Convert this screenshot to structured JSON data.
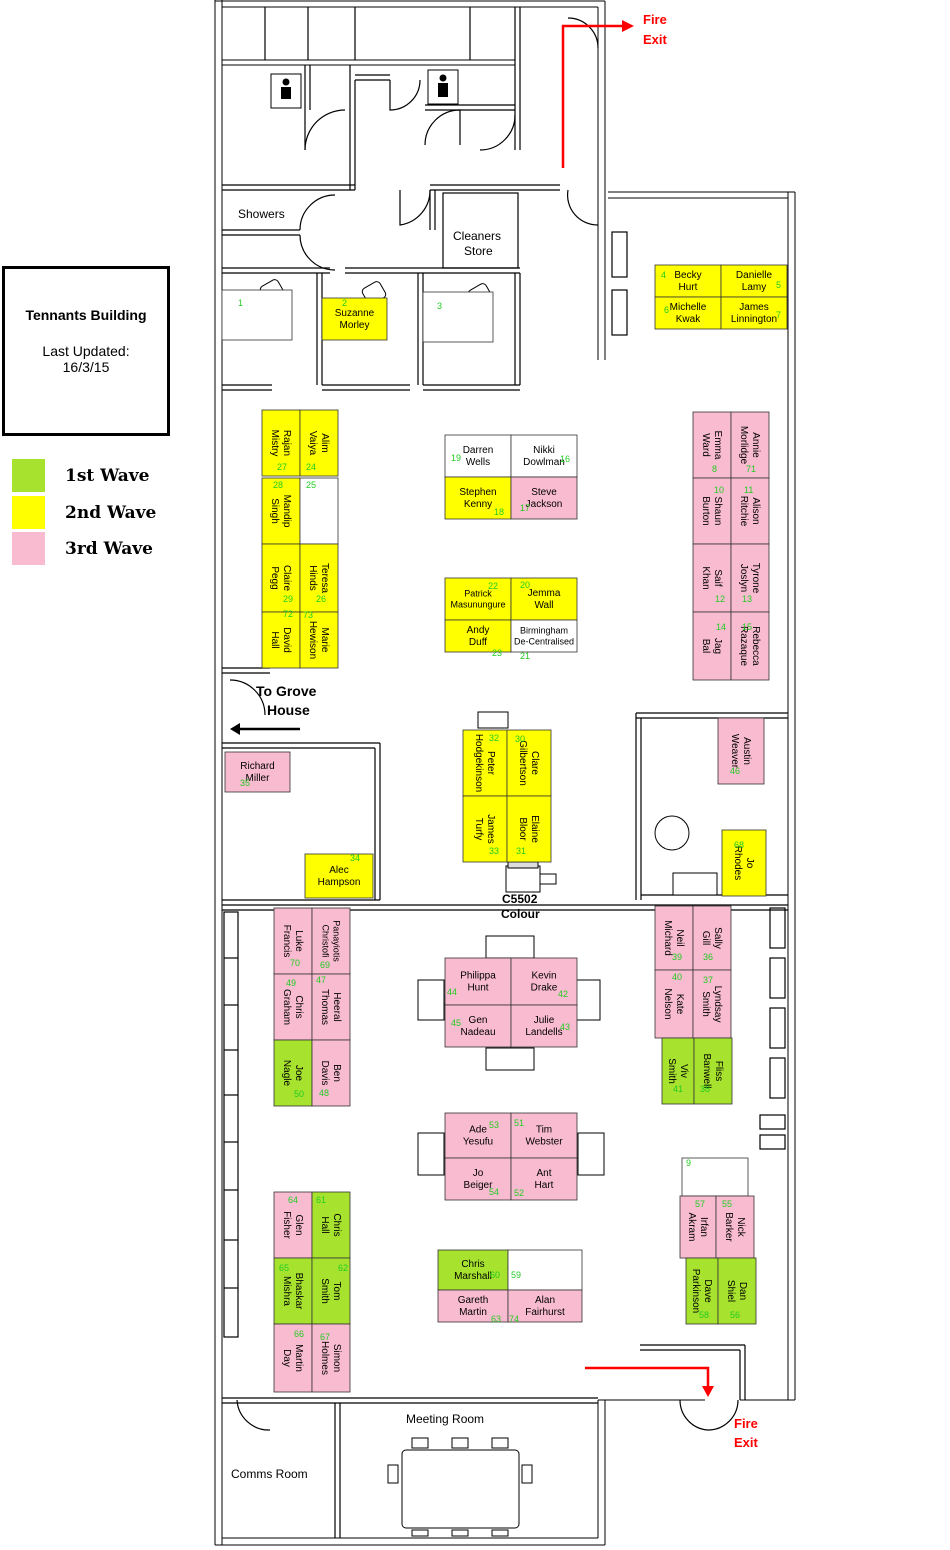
{
  "title_box": {
    "title": "Tennants Building",
    "updated_label": "Last Updated:",
    "updated_date": "16/3/15"
  },
  "legend": [
    {
      "label": "1st Wave",
      "color": "#a6e22e"
    },
    {
      "label": "2nd Wave",
      "color": "#ffff00"
    },
    {
      "label": "3rd Wave",
      "color": "#f8bbd0"
    }
  ],
  "colors": {
    "wave1": "#a6e22e",
    "wave2": "#ffff00",
    "wave3": "#f8bbd0",
    "empty": "#ffffff",
    "exit": "#ff0000",
    "num": "#22cc22"
  },
  "rooms": {
    "showers": "Showers",
    "cleaners_1": "Cleaners",
    "cleaners_2": "Store",
    "meeting": "Meeting  Room",
    "comms": "Comms Room",
    "printer_1": "C5502",
    "printer_2": "Colour",
    "grove_1": "To Grove",
    "grove_2": "House",
    "fire_exit_1": "Fire",
    "fire_exit_2": "Exit"
  },
  "desks": [
    {
      "num": "1",
      "name": "",
      "wave": "empty"
    },
    {
      "num": "2",
      "name": "Suzanne Morley",
      "wave": "wave2"
    },
    {
      "num": "3",
      "name": "",
      "wave": "empty"
    },
    {
      "num": "4",
      "name": "Becky Hurt",
      "wave": "wave2"
    },
    {
      "num": "5",
      "name": "Danielle Lamy",
      "wave": "wave2"
    },
    {
      "num": "6",
      "name": "Michelle Kwak",
      "wave": "wave2"
    },
    {
      "num": "7",
      "name": "James Linnington",
      "wave": "wave2"
    },
    {
      "num": "8",
      "name": "Emma Ward",
      "wave": "wave3"
    },
    {
      "num": "71",
      "name": "Annie Morlidge",
      "wave": "wave3"
    },
    {
      "num": "10",
      "name": "Shaun Burton",
      "wave": "wave3"
    },
    {
      "num": "11",
      "name": "Alison Ritchie",
      "wave": "wave3"
    },
    {
      "num": "12",
      "name": "Saif Khan",
      "wave": "wave3"
    },
    {
      "num": "13",
      "name": "Tyrone Joslyn",
      "wave": "wave3"
    },
    {
      "num": "14",
      "name": "Jag Bal",
      "wave": "wave3"
    },
    {
      "num": "15",
      "name": "Rebecca Razaque",
      "wave": "wave3"
    },
    {
      "num": "19",
      "name": "Darren Wells",
      "wave": "empty"
    },
    {
      "num": "16",
      "name": "Nikki Dowlman",
      "wave": "empty"
    },
    {
      "num": "18",
      "name": "Stephen Kenny",
      "wave": "wave2"
    },
    {
      "num": "17",
      "name": "Steve Jackson",
      "wave": "wave3"
    },
    {
      "num": "22",
      "name": "Patrick Masunungure",
      "wave": "wave2"
    },
    {
      "num": "20",
      "name": "Jemma Wall",
      "wave": "wave2"
    },
    {
      "num": "23",
      "name": "Andy Duff",
      "wave": "wave2"
    },
    {
      "num": "21",
      "name": "Birmingham De-Centralised",
      "wave": "empty"
    },
    {
      "num": "27",
      "name": "Rajan Mistry",
      "wave": "wave2"
    },
    {
      "num": "24",
      "name": "Alim Vaiya",
      "wave": "wave2"
    },
    {
      "num": "28",
      "name": "Mandip Singh",
      "wave": "wave2"
    },
    {
      "num": "25",
      "name": "",
      "wave": "empty"
    },
    {
      "num": "29",
      "name": "Claire Pegg",
      "wave": "wave2"
    },
    {
      "num": "26",
      "name": "Teresa Hinds",
      "wave": "wave2"
    },
    {
      "num": "72",
      "name": "David Hall",
      "wave": "wave2"
    },
    {
      "num": "73",
      "name": "Marie Hewison",
      "wave": "wave2"
    },
    {
      "num": "32",
      "name": "Peter Hodgekinson",
      "wave": "wave2"
    },
    {
      "num": "30",
      "name": "Clare Gilbertson",
      "wave": "wave2"
    },
    {
      "num": "33",
      "name": "James Turfy",
      "wave": "wave2"
    },
    {
      "num": "31",
      "name": "Elaine Bloor",
      "wave": "wave2"
    },
    {
      "num": "35",
      "name": "Richard Miller",
      "wave": "wave3"
    },
    {
      "num": "34",
      "name": "Alec Hampson",
      "wave": "wave2"
    },
    {
      "num": "46",
      "name": "Austin Weaver",
      "wave": "wave3"
    },
    {
      "num": "68",
      "name": "Jo Rhodes",
      "wave": "wave2"
    },
    {
      "num": "70",
      "name": "Luke Francis",
      "wave": "wave3"
    },
    {
      "num": "69",
      "name": "Panayiotis Christofi",
      "wave": "wave3"
    },
    {
      "num": "49",
      "name": "Chris Graham",
      "wave": "wave3"
    },
    {
      "num": "47",
      "name": "Heeral Thomas",
      "wave": "wave3"
    },
    {
      "num": "50",
      "name": "Joe Nagle",
      "wave": "wave1"
    },
    {
      "num": "48",
      "name": "Ben Davis",
      "wave": "wave3"
    },
    {
      "num": "44",
      "name": "Philippa Hunt",
      "wave": "wave3"
    },
    {
      "num": "42",
      "name": "Kevin Drake",
      "wave": "wave3"
    },
    {
      "num": "45",
      "name": "Gen Nadeau",
      "wave": "wave3"
    },
    {
      "num": "43",
      "name": "Julie Landells",
      "wave": "wave3"
    },
    {
      "num": "39",
      "name": "Neil Michard",
      "wave": "wave3"
    },
    {
      "num": "36",
      "name": "Sally Gill",
      "wave": "wave3"
    },
    {
      "num": "40",
      "name": "Kate Nelson",
      "wave": "wave3"
    },
    {
      "num": "37",
      "name": "Lyndsay Smith",
      "wave": "wave3"
    },
    {
      "num": "41",
      "name": "Viv Smith",
      "wave": "wave1"
    },
    {
      "num": "38",
      "name": "Fliss Banwell",
      "wave": "wave1"
    },
    {
      "num": "53",
      "name": "Ade Yesufu",
      "wave": "wave3"
    },
    {
      "num": "51",
      "name": "Tim Webster",
      "wave": "wave3"
    },
    {
      "num": "54",
      "name": "Jo Beiger",
      "wave": "wave3"
    },
    {
      "num": "52",
      "name": "Ant Hart",
      "wave": "wave3"
    },
    {
      "num": "64",
      "name": "Glen Fisher",
      "wave": "wave3"
    },
    {
      "num": "61",
      "name": "Chris Hall",
      "wave": "wave1"
    },
    {
      "num": "65",
      "name": "Bhaskar Mishra",
      "wave": "wave1"
    },
    {
      "num": "62",
      "name": "Tom Smith",
      "wave": "wave1"
    },
    {
      "num": "66",
      "name": "Martin Day",
      "wave": "wave3"
    },
    {
      "num": "67",
      "name": "Simon Holmes",
      "wave": "wave3"
    },
    {
      "num": "60",
      "name": "Chris Marshall",
      "wave": "wave1"
    },
    {
      "num": "59",
      "name": "",
      "wave": "empty"
    },
    {
      "num": "63",
      "name": "Gareth Martin",
      "wave": "wave3"
    },
    {
      "num": "74",
      "name": "Alan Fairhurst",
      "wave": "wave3"
    },
    {
      "num": "9",
      "name": "",
      "wave": "empty"
    },
    {
      "num": "57",
      "name": "Irfan Akram",
      "wave": "wave3"
    },
    {
      "num": "55",
      "name": "Nick Barker",
      "wave": "wave3"
    },
    {
      "num": "58",
      "name": "Dave Parkinson",
      "wave": "wave1"
    },
    {
      "num": "56",
      "name": "Dan Shiel",
      "wave": "wave1"
    }
  ]
}
